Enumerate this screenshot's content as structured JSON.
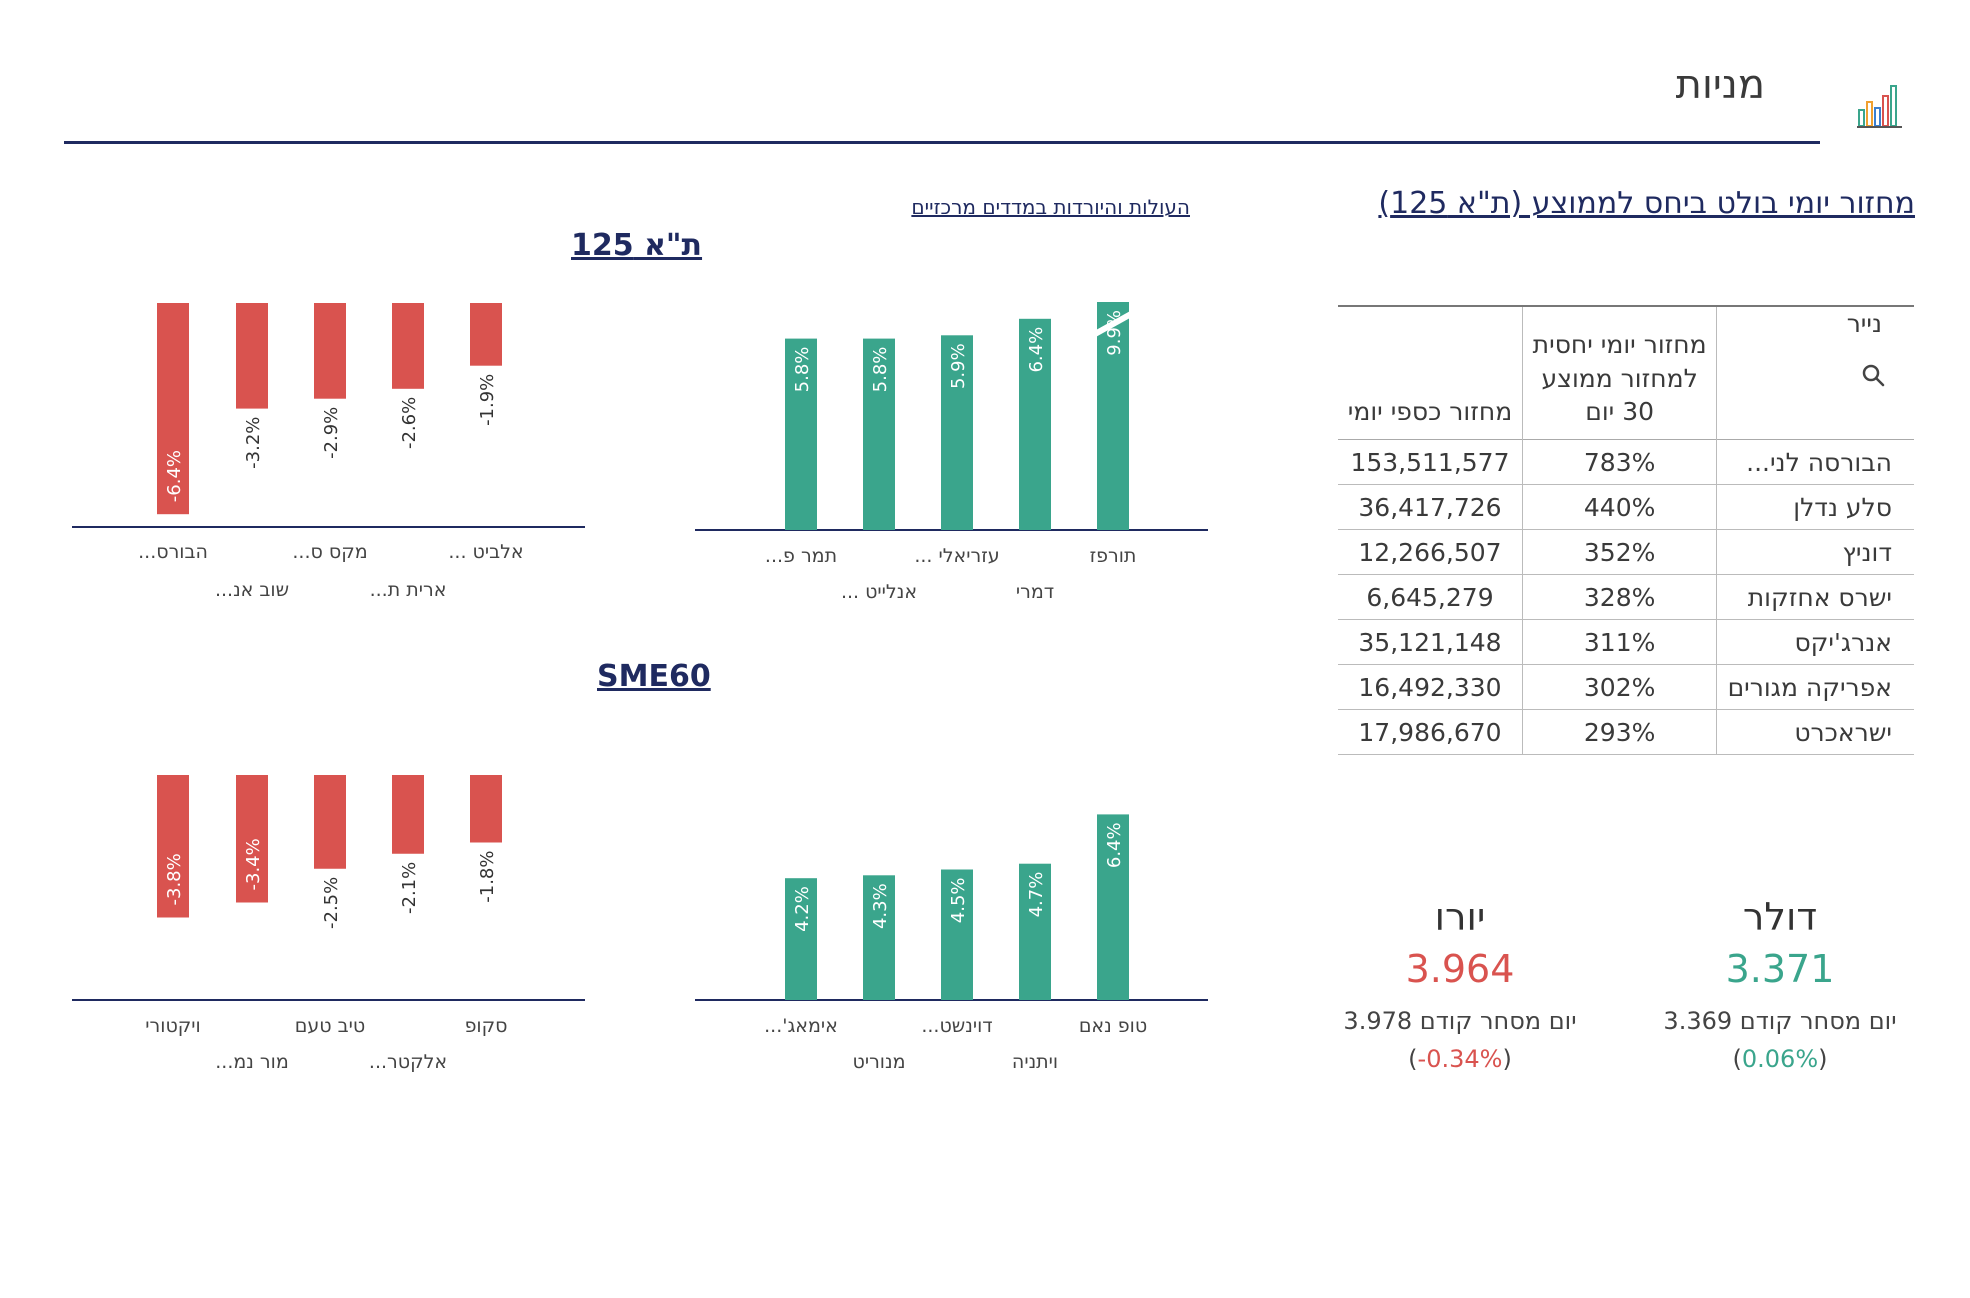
{
  "header": {
    "title": "מניות",
    "icon": "bar-chart-icon"
  },
  "links": {
    "main": "מחזור יומי בולט ביחס לממוצע (ת\"א 125)",
    "indices": "העולות והיורדות במדדים מרכזיים"
  },
  "table": {
    "headers": {
      "name": "נייר",
      "relative": "מחזור יומי יחסית למחזור ממוצע 30 יום",
      "cash": "מחזור כספי יומי"
    },
    "rows": [
      {
        "name": "הבורסה לני...",
        "relative": "783%",
        "cash": "153,511,577"
      },
      {
        "name": "סלע נדלן",
        "relative": "440%",
        "cash": "36,417,726"
      },
      {
        "name": "דוניץ",
        "relative": "352%",
        "cash": "12,266,507"
      },
      {
        "name": "ישרס אחזקות",
        "relative": "328%",
        "cash": "6,645,279"
      },
      {
        "name": "אנרג'יקס",
        "relative": "311%",
        "cash": "35,121,148"
      },
      {
        "name": "אפריקה מגורים",
        "relative": "302%",
        "cash": "16,492,330"
      },
      {
        "name": "ישראכרט",
        "relative": "293%",
        "cash": "17,986,670"
      }
    ]
  },
  "currency": {
    "dollar": {
      "name": "דולר",
      "value": "3.371",
      "prev_label": "יום מסחר קודם",
      "prev_value": "3.369",
      "change": "0.06%",
      "color": "#3aa58c"
    },
    "euro": {
      "name": "יורו",
      "value": "3.964",
      "prev_label": "יום מסחר קודם",
      "prev_value": "3.978",
      "change": "0.34%-",
      "color": "#d9534f"
    }
  },
  "colors": {
    "accent": "#1f2a60",
    "gain": "#3aa58c",
    "loss": "#d9534f"
  },
  "chart_data": [
    {
      "type": "bar",
      "title": "ת\"א 125",
      "subtitle": "gainers",
      "categories": [
        "תורפז",
        "דמרי",
        "עזריאלי ...",
        "אנלייט ...",
        "תמר פ..."
      ],
      "values": [
        9.9,
        6.4,
        5.9,
        5.8,
        5.8
      ],
      "labels": [
        "9.9%",
        "6.4%",
        "5.9%",
        "5.8%",
        "5.8%"
      ],
      "color": "#3aa58c"
    },
    {
      "type": "bar",
      "title": "ת\"א 125",
      "subtitle": "losers",
      "categories": [
        "אלביט ...",
        "ארית ת...",
        "מקס ס...",
        "שוב אנ...",
        "הבורס..."
      ],
      "values": [
        -1.9,
        -2.6,
        -2.9,
        -3.2,
        -6.4
      ],
      "labels": [
        "-1.9%",
        "-2.6%",
        "-2.9%",
        "-3.2%",
        "-6.4%"
      ],
      "color": "#d9534f"
    },
    {
      "type": "bar",
      "title": "SME60",
      "subtitle": "gainers",
      "categories": [
        "טופ נאם",
        "ויתניה",
        "דוינשט...",
        "מנוריט",
        "אימאג'..."
      ],
      "values": [
        6.4,
        4.7,
        4.5,
        4.3,
        4.2
      ],
      "labels": [
        "6.4%",
        "4.7%",
        "4.5%",
        "4.3%",
        "4.2%"
      ],
      "color": "#3aa58c"
    },
    {
      "type": "bar",
      "title": "SME60",
      "subtitle": "losers",
      "categories": [
        "סקופ",
        "אלקטר...",
        "טיב טעם",
        "מור נמ...",
        "ויקטורי"
      ],
      "values": [
        -1.8,
        -2.1,
        -2.5,
        -3.4,
        -3.8
      ],
      "labels": [
        "-1.8%",
        "-2.1%",
        "-2.5%",
        "-3.4%",
        "-3.8%"
      ],
      "color": "#d9534f"
    }
  ]
}
